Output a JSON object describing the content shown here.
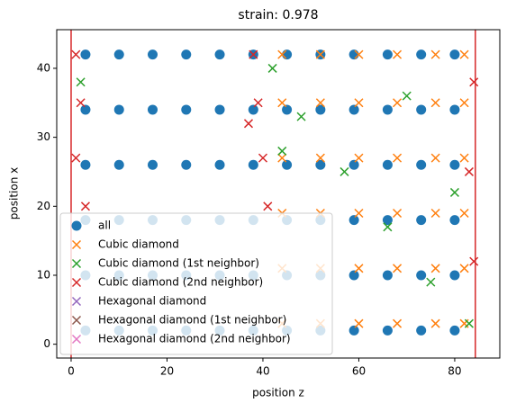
{
  "chart_data": {
    "type": "scatter",
    "title": "strain: 0.978",
    "xlabel": "position z",
    "ylabel": "position x",
    "xlim": [
      -3,
      89.4
    ],
    "ylim": [
      -2,
      45.6
    ],
    "xticks": [
      0,
      20,
      40,
      60,
      80
    ],
    "yticks": [
      0,
      10,
      20,
      30,
      40
    ],
    "vlines": [
      0,
      84.3
    ],
    "vline_color": "#d62728",
    "legend": "lower left",
    "series": [
      {
        "name": "all",
        "color": "#1f77b4",
        "marker": "o",
        "x": [
          3,
          10,
          17,
          24,
          31,
          38,
          45,
          52,
          59,
          66,
          73,
          80,
          3,
          10,
          17,
          24,
          31,
          38,
          45,
          52,
          59,
          66,
          73,
          80,
          3,
          10,
          17,
          24,
          31,
          38,
          45,
          52,
          59,
          66,
          73,
          80,
          3,
          10,
          17,
          24,
          31,
          38,
          45,
          52,
          59,
          66,
          73,
          80,
          3,
          10,
          17,
          24,
          31,
          38,
          45,
          52,
          59,
          66,
          73,
          80,
          3,
          10,
          17,
          24,
          31,
          38,
          45,
          52,
          59,
          66,
          73,
          80
        ],
        "y": [
          2,
          2,
          2,
          2,
          2,
          2,
          2,
          2,
          2,
          2,
          2,
          2,
          10,
          10,
          10,
          10,
          10,
          10,
          10,
          10,
          10,
          10,
          10,
          10,
          18,
          18,
          18,
          18,
          18,
          18,
          18,
          18,
          18,
          18,
          18,
          18,
          26,
          26,
          26,
          26,
          26,
          26,
          26,
          26,
          26,
          26,
          26,
          26,
          34,
          34,
          34,
          34,
          34,
          34,
          34,
          34,
          34,
          34,
          34,
          34,
          42,
          42,
          42,
          42,
          42,
          42,
          42,
          42,
          42,
          42,
          42,
          42
        ]
      },
      {
        "name": "Cubic diamond",
        "color": "#ff7f0e",
        "marker": "x",
        "x": [
          44,
          52,
          60,
          68,
          76,
          82,
          44,
          52,
          60,
          68,
          76,
          82,
          44,
          52,
          60,
          68,
          76,
          82,
          44,
          52,
          60,
          68,
          76,
          82,
          44,
          52,
          60,
          68,
          76,
          82,
          44,
          52,
          60,
          68,
          76,
          82
        ],
        "y": [
          3,
          3,
          3,
          3,
          3,
          3,
          11,
          11,
          11,
          11,
          11,
          11,
          19,
          19,
          19,
          19,
          19,
          19,
          27,
          27,
          27,
          27,
          27,
          27,
          35,
          35,
          35,
          35,
          35,
          35,
          42,
          42,
          42,
          42,
          42,
          42
        ]
      },
      {
        "name": "Cubic diamond (1st neighbor)",
        "color": "#2ca02c",
        "marker": "x",
        "x": [
          42,
          48,
          57,
          66,
          75,
          83,
          2,
          44,
          70,
          80
        ],
        "y": [
          40,
          33,
          25,
          17,
          9,
          3,
          38,
          28,
          36,
          22
        ]
      },
      {
        "name": "Cubic diamond (2nd neighbor)",
        "color": "#d62728",
        "marker": "x",
        "x": [
          1,
          2,
          1,
          3,
          38,
          39,
          40,
          41,
          37,
          84,
          83,
          84
        ],
        "y": [
          42,
          35,
          27,
          20,
          42,
          35,
          27,
          20,
          32,
          38,
          25,
          12
        ]
      },
      {
        "name": "Hexagonal diamond",
        "color": "#9467bd",
        "marker": "x",
        "x": [],
        "y": []
      },
      {
        "name": "Hexagonal diamond (1st neighbor)",
        "color": "#8c564b",
        "marker": "x",
        "x": [],
        "y": []
      },
      {
        "name": "Hexagonal diamond (2nd neighbor)",
        "color": "#e377c2",
        "marker": "x",
        "x": [],
        "y": []
      }
    ]
  }
}
